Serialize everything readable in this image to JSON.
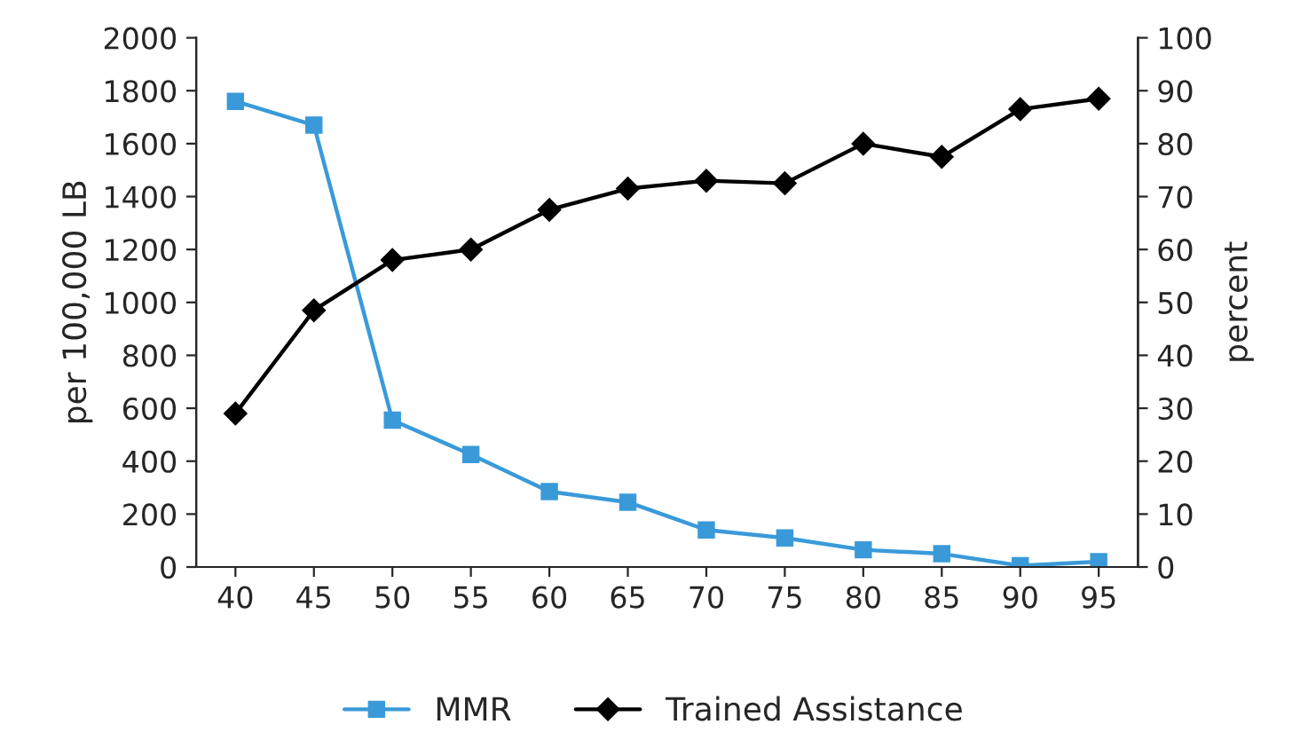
{
  "chart_data": {
    "type": "line",
    "categories": [
      "40",
      "45",
      "50",
      "55",
      "60",
      "65",
      "70",
      "75",
      "80",
      "85",
      "90",
      "95"
    ],
    "ylabel": "per 100,000 LB",
    "y2label": "percent",
    "ylim": [
      0,
      2000
    ],
    "yticks": [
      0,
      200,
      400,
      600,
      800,
      1000,
      1200,
      1400,
      1600,
      1800,
      2000
    ],
    "y2lim": [
      0,
      100
    ],
    "y2ticks": [
      0,
      10,
      20,
      30,
      40,
      50,
      60,
      70,
      80,
      90,
      100
    ],
    "series": [
      {
        "name": "MMR",
        "color": "#3a9ad9",
        "marker": "square",
        "values": [
          1760,
          1670,
          555,
          425,
          285,
          245,
          140,
          110,
          65,
          50,
          5,
          20
        ]
      },
      {
        "name": "Trained Assistance",
        "color": "#000000",
        "marker": "diamond",
        "axis": "y2",
        "values": [
          29,
          48.5,
          58,
          60,
          67.5,
          71.5,
          73,
          72.5,
          80,
          77.5,
          86.5,
          88.5
        ]
      }
    ],
    "legend": "bottom",
    "grid": false
  }
}
